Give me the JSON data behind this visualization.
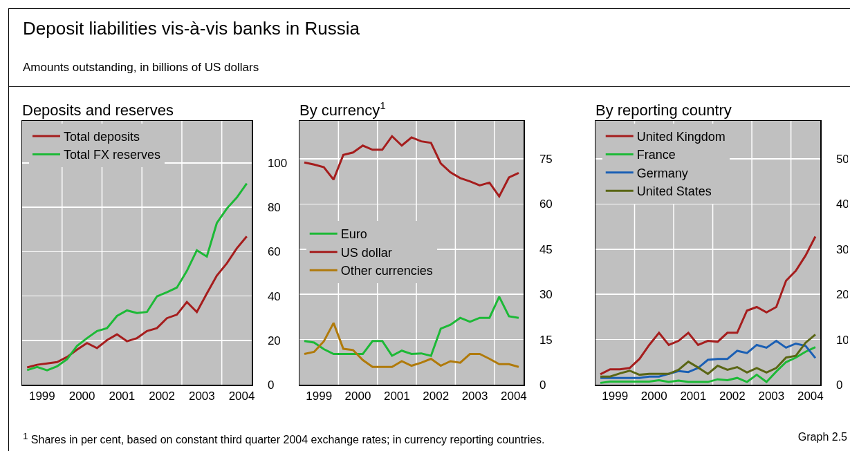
{
  "chart_data": [
    {
      "type": "other",
      "title": "Deposit liabilities vis-à-vis banks in Russia",
      "subtitle": "Amounts outstanding, in billions of US dollars",
      "annotations": [
        "$^{1}$  Shares in per cent, based on constant third quarter 2004 exchange rates; in currency reporting countries.",
        "Graph 2.5"
      ]
    },
    {
      "type": "line",
      "title": "Deposits and reserves",
      "x": [
        1999.125,
        1999.375,
        1999.625,
        1999.875,
        2000.125,
        2000.375,
        2000.625,
        2000.875,
        2001.125,
        2001.375,
        2001.625,
        2001.875,
        2002.125,
        2002.375,
        2002.625,
        2002.875,
        2003.125,
        2003.375,
        2003.625,
        2003.875,
        2004.125,
        2004.375,
        2004.625
      ],
      "series": [
        {
          "name": "Total deposits",
          "color": "#a51d1d",
          "values": [
            7.8,
            9,
            9.6,
            10.2,
            12.5,
            15.8,
            18.8,
            16.5,
            20.1,
            22.7,
            19.6,
            21,
            24.2,
            25.5,
            30,
            31.6,
            37.3,
            32.8,
            41.1,
            49.2,
            54.7,
            61.5,
            66.9
          ]
        },
        {
          "name": "Total FX reserves",
          "color": "#1cb936",
          "values": [
            6.6,
            8,
            6.5,
            8.3,
            11.5,
            17.5,
            21,
            24.2,
            25.5,
            31,
            33.5,
            32.3,
            32.8,
            39.8,
            41.7,
            43.8,
            51.3,
            60.6,
            57.8,
            72.9,
            79.4,
            84.4,
            90.8
          ]
        }
      ],
      "xlim": [
        1999,
        2004.75
      ],
      "xticks": [
        {
          "value": 1999.5,
          "label": "1999"
        },
        {
          "value": 2000,
          "label": null
        },
        {
          "value": 2000.5,
          "label": "2000"
        },
        {
          "value": 2001,
          "label": null
        },
        {
          "value": 2001.5,
          "label": "2001"
        },
        {
          "value": 2002,
          "label": null
        },
        {
          "value": 2002.5,
          "label": "2002"
        },
        {
          "value": 2003,
          "label": null
        },
        {
          "value": 2003.5,
          "label": "2003"
        },
        {
          "value": 2004,
          "label": null
        },
        {
          "value": 2004.5,
          "label": "2004"
        }
      ],
      "ylim": [
        0,
        119
      ],
      "yticks": [
        0,
        20,
        40,
        60,
        80,
        100
      ],
      "grid": true,
      "legend": "top left",
      "line_style": "solid"
    },
    {
      "type": "line",
      "title": "By currency$^{1}$",
      "x": [
        1999.125,
        1999.375,
        1999.625,
        1999.875,
        2000.125,
        2000.375,
        2000.625,
        2000.875,
        2001.125,
        2001.375,
        2001.625,
        2001.875,
        2002.125,
        2002.375,
        2002.625,
        2002.875,
        2003.125,
        2003.375,
        2003.625,
        2003.875,
        2004.125,
        2004.375,
        2004.625
      ],
      "series": [
        {
          "name": "Euro",
          "color": "#1cb936",
          "values": [
            14.5,
            14,
            11.8,
            10.2,
            10.2,
            10.2,
            10.2,
            14.5,
            14.5,
            9.6,
            11.3,
            10.2,
            10.4,
            9.6,
            18.6,
            19.9,
            22.2,
            20.9,
            22.2,
            22.2,
            29.2,
            22.7,
            22.2
          ]
        },
        {
          "name": "US dollar",
          "color": "#a51d1d",
          "values": [
            73.8,
            73.1,
            72.2,
            68.1,
            76.3,
            77.1,
            79.4,
            78,
            78,
            82.5,
            79.4,
            82.1,
            80.8,
            80.3,
            73.5,
            70.5,
            68.6,
            67.5,
            66.2,
            67.1,
            62.5,
            68.8,
            70.3
          ]
        },
        {
          "name": "Other currencies",
          "color": "#b07a0a",
          "values": [
            10.2,
            10.9,
            14.4,
            20.5,
            11.9,
            11.5,
            8.2,
            5.9,
            5.9,
            5.9,
            7.8,
            6.3,
            7.3,
            8.6,
            6.3,
            7.8,
            7.3,
            10.2,
            10.2,
            8.6,
            6.8,
            6.8,
            5.9
          ]
        }
      ],
      "xlim": [
        1999,
        2004.75
      ],
      "xticks": [
        {
          "value": 1999.5,
          "label": "1999"
        },
        {
          "value": 2000,
          "label": null
        },
        {
          "value": 2000.5,
          "label": "2000"
        },
        {
          "value": 2001,
          "label": null
        },
        {
          "value": 2001.5,
          "label": "2001"
        },
        {
          "value": 2002,
          "label": null
        },
        {
          "value": 2002.5,
          "label": "2002"
        },
        {
          "value": 2003,
          "label": null
        },
        {
          "value": 2003.5,
          "label": "2003"
        },
        {
          "value": 2004,
          "label": null
        },
        {
          "value": 2004.5,
          "label": "2004"
        }
      ],
      "ylim": [
        0,
        87.6
      ],
      "yticks": [
        0,
        15,
        30,
        45,
        60,
        75
      ],
      "grid": true,
      "legend": "left",
      "line_style": "solid"
    },
    {
      "type": "line",
      "title": "By reporting country",
      "x": [
        1999.125,
        1999.375,
        1999.625,
        1999.875,
        2000.125,
        2000.375,
        2000.625,
        2000.875,
        2001.125,
        2001.375,
        2001.625,
        2001.875,
        2002.125,
        2002.375,
        2002.625,
        2002.875,
        2003.125,
        2003.375,
        2003.625,
        2003.875,
        2004.125,
        2004.375,
        2004.625
      ],
      "series": [
        {
          "name": "United Kingdom",
          "color": "#a51d1d",
          "values": [
            2.3,
            3.4,
            3.4,
            3.7,
            5.7,
            8.8,
            11.5,
            8.8,
            9.7,
            11.5,
            8.8,
            9.7,
            9.5,
            11.5,
            11.5,
            16.4,
            17.2,
            16,
            17.2,
            23,
            25.2,
            28.6,
            32.8
          ]
        },
        {
          "name": "France",
          "color": "#1cb936",
          "values": [
            0.4,
            0.7,
            0.7,
            0.7,
            0.7,
            0.7,
            1,
            0.6,
            0.9,
            0.6,
            0.6,
            0.6,
            1.2,
            1,
            1.5,
            0.6,
            2.2,
            0.6,
            2.9,
            5,
            6,
            7.3,
            8.3
          ]
        },
        {
          "name": "Germany",
          "color": "#1a5fb4",
          "values": [
            1.5,
            1.5,
            1.5,
            1.5,
            1.5,
            1.8,
            1.8,
            2.4,
            3,
            2.8,
            3.7,
            5.5,
            5.7,
            5.7,
            7.5,
            7,
            8.8,
            8.2,
            9.7,
            8.2,
            9.1,
            8.6,
            5.9
          ]
        },
        {
          "name": "United States",
          "color": "#5a6614",
          "values": [
            1.8,
            1.8,
            2.5,
            3.1,
            2.2,
            2.4,
            2.4,
            2.4,
            3.3,
            5.1,
            3.8,
            2.4,
            4.2,
            3.3,
            3.9,
            2.7,
            3.7,
            2.7,
            3.7,
            6,
            6.4,
            9.3,
            11.1
          ]
        }
      ],
      "xlim": [
        1999,
        2004.75
      ],
      "xticks": [
        {
          "value": 1999.5,
          "label": "1999"
        },
        {
          "value": 2000,
          "label": null
        },
        {
          "value": 2000.5,
          "label": "2000"
        },
        {
          "value": 2001,
          "label": null
        },
        {
          "value": 2001.5,
          "label": "2001"
        },
        {
          "value": 2002,
          "label": null
        },
        {
          "value": 2002.5,
          "label": "2002"
        },
        {
          "value": 2003,
          "label": null
        },
        {
          "value": 2003.5,
          "label": "2003"
        },
        {
          "value": 2004,
          "label": null
        },
        {
          "value": 2004.5,
          "label": "2004"
        }
      ],
      "ylim": [
        0,
        58.4
      ],
      "yticks": [
        0,
        10,
        20,
        30,
        40,
        50
      ],
      "grid": true,
      "legend": "top left",
      "line_style": "solid"
    }
  ]
}
